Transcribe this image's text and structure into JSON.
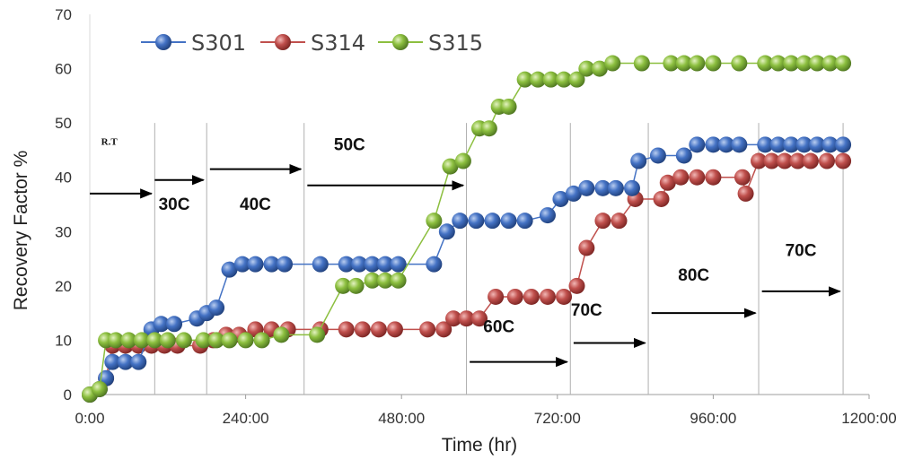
{
  "chart_data": {
    "type": "line",
    "title": "",
    "xlabel": "Time (hr)",
    "ylabel": "Recovery Factor %",
    "xlim": [
      0,
      1200
    ],
    "ylim": [
      0,
      70
    ],
    "xticks": [
      0,
      240,
      480,
      720,
      960,
      1200
    ],
    "xtick_labels": [
      "0:00",
      "240:00",
      "480:00",
      "720:00",
      "960:00",
      "1200:00"
    ],
    "yticks": [
      0,
      10,
      20,
      30,
      40,
      50,
      60,
      70
    ],
    "ytick_labels": [
      "0",
      "10",
      "20",
      "30",
      "40",
      "50",
      "60",
      "70"
    ],
    "grid": "vertical gridlines at stage boundaries",
    "legend_position": "top-left",
    "colors": {
      "S301": "#4472c4",
      "S314": "#c0504d",
      "S315": "#8cbf3f"
    },
    "series": [
      {
        "name": "S301",
        "points": [
          [
            0,
            0
          ],
          [
            15,
            1
          ],
          [
            25,
            3
          ],
          [
            35,
            6
          ],
          [
            55,
            6
          ],
          [
            75,
            6
          ],
          [
            95,
            12
          ],
          [
            110,
            13
          ],
          [
            130,
            13
          ],
          [
            165,
            14
          ],
          [
            180,
            15
          ],
          [
            195,
            16
          ],
          [
            215,
            23
          ],
          [
            235,
            24
          ],
          [
            255,
            24
          ],
          [
            280,
            24
          ],
          [
            300,
            24
          ],
          [
            355,
            24
          ],
          [
            395,
            24
          ],
          [
            415,
            24
          ],
          [
            435,
            24
          ],
          [
            455,
            24
          ],
          [
            475,
            24
          ],
          [
            530,
            24
          ],
          [
            550,
            30
          ],
          [
            570,
            32
          ],
          [
            595,
            32
          ],
          [
            620,
            32
          ],
          [
            645,
            32
          ],
          [
            670,
            32
          ],
          [
            705,
            33
          ],
          [
            725,
            36
          ],
          [
            745,
            37
          ],
          [
            765,
            38
          ],
          [
            790,
            38
          ],
          [
            810,
            38
          ],
          [
            835,
            38
          ],
          [
            845,
            43
          ],
          [
            875,
            44
          ],
          [
            915,
            44
          ],
          [
            935,
            46
          ],
          [
            960,
            46
          ],
          [
            980,
            46
          ],
          [
            1000,
            46
          ],
          [
            1040,
            46
          ],
          [
            1060,
            46
          ],
          [
            1080,
            46
          ],
          [
            1100,
            46
          ],
          [
            1120,
            46
          ],
          [
            1140,
            46
          ],
          [
            1160,
            46
          ]
        ]
      },
      {
        "name": "S314",
        "points": [
          [
            0,
            0
          ],
          [
            15,
            1
          ],
          [
            25,
            3
          ],
          [
            35,
            9
          ],
          [
            55,
            9
          ],
          [
            75,
            9
          ],
          [
            95,
            9
          ],
          [
            115,
            9
          ],
          [
            135,
            9
          ],
          [
            170,
            9
          ],
          [
            190,
            10
          ],
          [
            210,
            11
          ],
          [
            230,
            11
          ],
          [
            255,
            12
          ],
          [
            280,
            12
          ],
          [
            305,
            12
          ],
          [
            355,
            12
          ],
          [
            395,
            12
          ],
          [
            420,
            12
          ],
          [
            445,
            12
          ],
          [
            470,
            12
          ],
          [
            520,
            12
          ],
          [
            545,
            12
          ],
          [
            560,
            14
          ],
          [
            580,
            14
          ],
          [
            600,
            14
          ],
          [
            625,
            18
          ],
          [
            655,
            18
          ],
          [
            680,
            18
          ],
          [
            705,
            18
          ],
          [
            730,
            18
          ],
          [
            750,
            20
          ],
          [
            765,
            27
          ],
          [
            790,
            32
          ],
          [
            815,
            32
          ],
          [
            840,
            36
          ],
          [
            880,
            36
          ],
          [
            890,
            39
          ],
          [
            910,
            40
          ],
          [
            935,
            40
          ],
          [
            960,
            40
          ],
          [
            1005,
            40
          ],
          [
            1010,
            37
          ],
          [
            1030,
            43
          ],
          [
            1050,
            43
          ],
          [
            1070,
            43
          ],
          [
            1090,
            43
          ],
          [
            1110,
            43
          ],
          [
            1135,
            43
          ],
          [
            1160,
            43
          ]
        ]
      },
      {
        "name": "S315",
        "points": [
          [
            0,
            0
          ],
          [
            15,
            1
          ],
          [
            25,
            10
          ],
          [
            40,
            10
          ],
          [
            60,
            10
          ],
          [
            80,
            10
          ],
          [
            100,
            10
          ],
          [
            120,
            10
          ],
          [
            145,
            10
          ],
          [
            175,
            10
          ],
          [
            195,
            10
          ],
          [
            215,
            10
          ],
          [
            240,
            10
          ],
          [
            265,
            10
          ],
          [
            295,
            11
          ],
          [
            350,
            11
          ],
          [
            390,
            20
          ],
          [
            410,
            20
          ],
          [
            435,
            21
          ],
          [
            455,
            21
          ],
          [
            475,
            21
          ],
          [
            530,
            32
          ],
          [
            555,
            42
          ],
          [
            575,
            43
          ],
          [
            600,
            49
          ],
          [
            615,
            49
          ],
          [
            630,
            53
          ],
          [
            645,
            53
          ],
          [
            670,
            58
          ],
          [
            690,
            58
          ],
          [
            710,
            58
          ],
          [
            730,
            58
          ],
          [
            750,
            58
          ],
          [
            765,
            60
          ],
          [
            785,
            60
          ],
          [
            805,
            61
          ],
          [
            850,
            61
          ],
          [
            895,
            61
          ],
          [
            915,
            61
          ],
          [
            935,
            61
          ],
          [
            960,
            61
          ],
          [
            1000,
            61
          ],
          [
            1040,
            61
          ],
          [
            1060,
            61
          ],
          [
            1080,
            61
          ],
          [
            1100,
            61
          ],
          [
            1120,
            61
          ],
          [
            1140,
            61
          ],
          [
            1160,
            61
          ]
        ]
      }
    ],
    "stage_boundaries": [
      100,
      180,
      330,
      580,
      740,
      860,
      1030,
      1160
    ],
    "annotations": [
      {
        "text": "R.T",
        "x": 30,
        "y": 46,
        "small": true
      },
      {
        "text": "30C",
        "x": 130,
        "y": 34
      },
      {
        "text": "40C",
        "x": 255,
        "y": 34
      },
      {
        "text": "50C",
        "x": 400,
        "y": 45
      },
      {
        "text": "60C",
        "x": 630,
        "y": 11.5
      },
      {
        "text": "70C",
        "x": 765,
        "y": 14.5
      },
      {
        "text": "80C",
        "x": 930,
        "y": 21
      },
      {
        "text": "70C",
        "x": 1095,
        "y": 25.5
      }
    ],
    "arrows": [
      {
        "x1": 0,
        "x2": 95,
        "y": 37
      },
      {
        "x1": 100,
        "x2": 175,
        "y": 39.5
      },
      {
        "x1": 185,
        "x2": 325,
        "y": 41.5
      },
      {
        "x1": 335,
        "x2": 575,
        "y": 38.5
      },
      {
        "x1": 585,
        "x2": 735,
        "y": 6
      },
      {
        "x1": 745,
        "x2": 855,
        "y": 9.5
      },
      {
        "x1": 865,
        "x2": 1025,
        "y": 15
      },
      {
        "x1": 1035,
        "x2": 1155,
        "y": 19
      }
    ]
  }
}
